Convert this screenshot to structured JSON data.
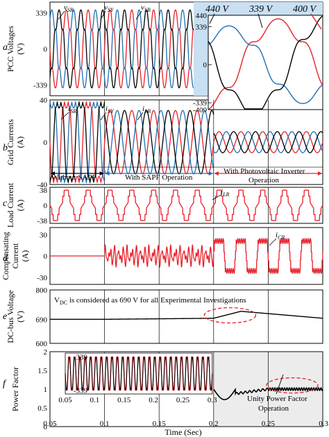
{
  "figure": {
    "x_axis_label": "Time (Sec)",
    "x_ticks": [
      "0.05",
      "0.1",
      "0.15",
      "0.2",
      "0.25",
      "0.3"
    ],
    "xlim": [
      0.05,
      0.3
    ],
    "event_times": [
      0.1,
      0.15,
      0.2,
      0.25
    ]
  },
  "chart_data": [
    {
      "type": "line",
      "panel_letter": "a",
      "ylabel": "PCC Voltages\n(V)",
      "ylim": [
        -440,
        440
      ],
      "y_ticks": [
        "339",
        "0",
        "-339"
      ],
      "series": [
        {
          "name": "v_SR",
          "color": "#e8202a",
          "amplitude": 339,
          "frequency_hz": 50,
          "phase_deg": 0
        },
        {
          "name": "v_SY",
          "color": "#1f6fb4",
          "amplitude": 339,
          "frequency_hz": 50,
          "phase_deg": -120
        },
        {
          "name": "v_SB",
          "color": "#000000",
          "amplitude": 339,
          "frequency_hz": 50,
          "phase_deg": 120
        }
      ],
      "annotations": {
        "v_sr": "v",
        "v_sr_sub": "SR",
        "v_sy": "v",
        "v_sy_sub": "SY",
        "v_sb": "v",
        "v_sb_sub": "SB"
      }
    },
    {
      "type": "line",
      "panel_letter": "inset",
      "y_ticks": [
        "440",
        "339",
        "0",
        "-339",
        "-400"
      ],
      "labels": [
        "440 V",
        "339 V",
        "400 V"
      ]
    },
    {
      "type": "line",
      "panel_letter": "b",
      "ylabel": "Grid Currents\n(A)",
      "ylim": [
        -40,
        40
      ],
      "y_ticks": [
        "40",
        "0",
        "-40"
      ],
      "segments": [
        {
          "from": 0.05,
          "to": 0.1,
          "amplitude": 38,
          "shape": "square"
        },
        {
          "from": 0.1,
          "to": 0.2,
          "amplitude": 30,
          "shape": "sine"
        },
        {
          "from": 0.2,
          "to": 0.3,
          "amplitude": 10,
          "shape": "sine"
        }
      ],
      "series": [
        {
          "name": "i_SR",
          "color": "#e8202a"
        },
        {
          "name": "i_SY",
          "color": "#1f6fb4"
        },
        {
          "name": "i_SB",
          "color": "#000000"
        }
      ],
      "annotations": {
        "i_sr": "i",
        "i_sr_sub": "SR",
        "i_sy": "i",
        "i_sy_sub": "SY",
        "i_sb": "i",
        "i_sb_sub": "SB",
        "without": "Without SAPF",
        "with_sapf": "With SAPF Operation",
        "with_pv_1": "With Photovoltaic Inverter",
        "with_pv_2": "Operation"
      }
    },
    {
      "type": "line",
      "panel_letter": "c",
      "ylabel": "Load Current\n(A)",
      "ylim": [
        -45,
        45
      ],
      "y_ticks": [
        "38",
        "0",
        "-38"
      ],
      "series": [
        {
          "name": "i_LR",
          "color": "#e8202a",
          "amplitude": 38,
          "frequency_hz": 50,
          "shape": "rectifier-square"
        }
      ],
      "annotations": {
        "i_lr": "i",
        "i_lr_sub": "LR"
      }
    },
    {
      "type": "line",
      "panel_letter": "d",
      "ylabel": "Compensating\nCurrent\n(A)",
      "ylim": [
        -40,
        40
      ],
      "y_ticks": [
        "30",
        "0",
        "-30"
      ],
      "series": [
        {
          "name": "i_CR",
          "color": "#e8202a",
          "segments": [
            {
              "from": 0.05,
              "to": 0.1,
              "amplitude": 0
            },
            {
              "from": 0.1,
              "to": 0.2,
              "amplitude": 14
            },
            {
              "from": 0.2,
              "to": 0.3,
              "amplitude": 28
            }
          ]
        }
      ],
      "annotations": {
        "i_cr": "i",
        "i_cr_sub": "CR"
      }
    },
    {
      "type": "line",
      "panel_letter": "e",
      "ylabel": "DC-bus Voltage\n(V)",
      "ylim": [
        600,
        800
      ],
      "y_ticks": [
        "800",
        "690",
        "600"
      ],
      "series": [
        {
          "name": "V_DC",
          "color": "#000000",
          "nominal": 690,
          "peak": 720,
          "peak_time": 0.225
        }
      ],
      "annotations": {
        "note_v": "V",
        "note_sub": "DC",
        "note_text": " is considered as 690 V for all Experimental Investigations"
      }
    },
    {
      "type": "line",
      "panel_letter": "f",
      "ylabel": "Power Factor",
      "ylim": [
        0,
        2
      ],
      "y_ticks": [
        "2",
        "1.5",
        "1",
        "0.5",
        "0"
      ],
      "series": [
        {
          "name": "power factor",
          "color": "#000000",
          "value": 1
        }
      ],
      "inset": {
        "y_ticks": [
          "339",
          "-339"
        ],
        "x_ticks": [
          "0.05",
          "0.1",
          "0.15",
          "0.2",
          "0.25",
          "0.3"
        ]
      },
      "annotations": {
        "unity_1": "Unity Power Factor",
        "unity_2": "Operation"
      }
    }
  ]
}
